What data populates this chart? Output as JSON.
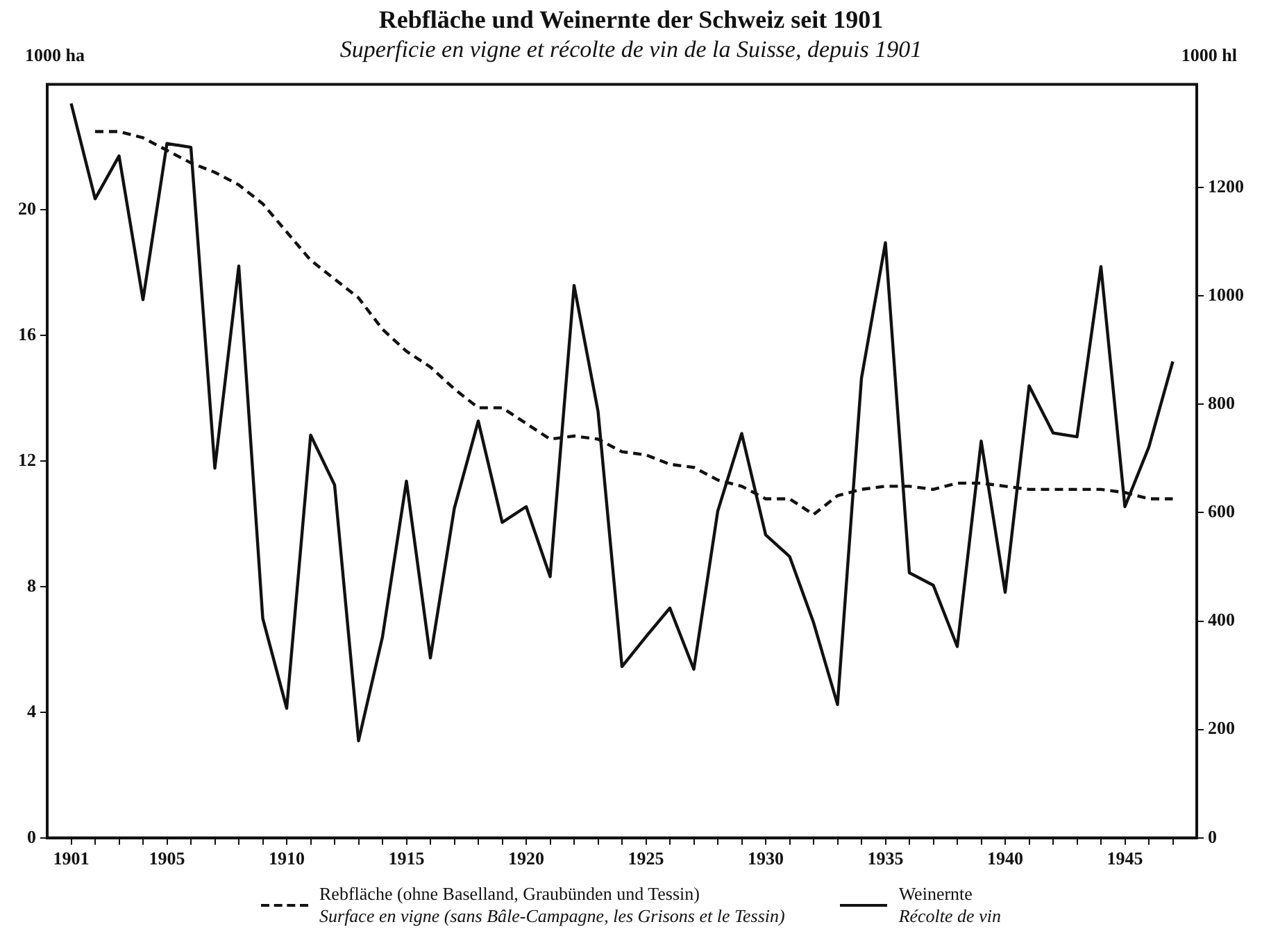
{
  "chart_data": {
    "type": "line",
    "title": "Rebfläche und Weinernte der Schweiz seit 1901",
    "subtitle": "Superficie en vigne et récolte de vin de la Suisse, depuis 1901",
    "ylabel": "1000 ha",
    "y2label": "1000 hl",
    "x": [
      1901,
      1902,
      1903,
      1904,
      1905,
      1906,
      1907,
      1908,
      1909,
      1910,
      1911,
      1912,
      1913,
      1914,
      1915,
      1916,
      1917,
      1918,
      1919,
      1920,
      1921,
      1922,
      1923,
      1924,
      1925,
      1926,
      1927,
      1928,
      1929,
      1930,
      1931,
      1932,
      1933,
      1934,
      1935,
      1936,
      1937,
      1938,
      1939,
      1940,
      1941,
      1942,
      1943,
      1944,
      1945,
      1946,
      1947
    ],
    "series": [
      {
        "name": "Rebfläche (ohne Baselland, Graubünden und Tessin)\nSurface en vigne (sans Bâle-Campagne, les Grisons et le Tessin)",
        "color": "#111111",
        "line_style": "dashed",
        "values": [
          null,
          22.5,
          22.5,
          22.3,
          21.9,
          21.5,
          21.2,
          20.8,
          20.2,
          19.3,
          18.4,
          17.8,
          17.2,
          16.2,
          15.5,
          15.0,
          14.3,
          13.7,
          13.7,
          13.2,
          12.7,
          12.8,
          12.7,
          12.3,
          12.2,
          11.9,
          11.8,
          11.4,
          11.2,
          10.8,
          10.8,
          10.3,
          10.9,
          11.1,
          11.2,
          11.2,
          11.1,
          11.3,
          11.3,
          11.2,
          11.1,
          11.1,
          11.1,
          11.1,
          11.0,
          10.8,
          10.8
        ]
      },
      {
        "name": "Weinernte\nRécolte de vin",
        "color": "#111111",
        "line_style": "solid",
        "axis": "y2",
        "values": [
          1355,
          1179,
          1258,
          993,
          1281,
          1274,
          682,
          1055,
          405,
          239,
          743,
          651,
          179,
          371,
          658,
          332,
          608,
          769,
          582,
          611,
          482,
          1019,
          787,
          316,
          371,
          424,
          311,
          603,
          746,
          559,
          519,
          397,
          246,
          848,
          1098,
          489,
          466,
          353,
          732,
          453,
          834,
          747,
          740,
          1054,
          611,
          721,
          879
        ]
      }
    ],
    "xlim": [
      1900,
      1948
    ],
    "xticks": [
      1901,
      {
        "value": 1902,
        "label": null
      },
      {
        "value": 1903,
        "label": null
      },
      {
        "value": 1904,
        "label": null
      },
      1905,
      {
        "value": 1906,
        "label": null
      },
      {
        "value": 1907,
        "label": null
      },
      {
        "value": 1908,
        "label": null
      },
      {
        "value": 1909,
        "label": null
      },
      1910,
      {
        "value": 1911,
        "label": null
      },
      {
        "value": 1912,
        "label": null
      },
      {
        "value": 1913,
        "label": null
      },
      {
        "value": 1914,
        "label": null
      },
      1915,
      {
        "value": 1916,
        "label": null
      },
      {
        "value": 1917,
        "label": null
      },
      {
        "value": 1918,
        "label": null
      },
      {
        "value": 1919,
        "label": null
      },
      1920,
      {
        "value": 1921,
        "label": null
      },
      {
        "value": 1922,
        "label": null
      },
      {
        "value": 1923,
        "label": null
      },
      {
        "value": 1924,
        "label": null
      },
      1925,
      {
        "value": 1926,
        "label": null
      },
      {
        "value": 1927,
        "label": null
      },
      {
        "value": 1928,
        "label": null
      },
      {
        "value": 1929,
        "label": null
      },
      1930,
      {
        "value": 1931,
        "label": null
      },
      {
        "value": 1932,
        "label": null
      },
      {
        "value": 1933,
        "label": null
      },
      {
        "value": 1934,
        "label": null
      },
      1935,
      {
        "value": 1936,
        "label": null
      },
      {
        "value": 1937,
        "label": null
      },
      {
        "value": 1938,
        "label": null
      },
      {
        "value": 1939,
        "label": null
      },
      1940,
      {
        "value": 1941,
        "label": null
      },
      {
        "value": 1942,
        "label": null
      },
      {
        "value": 1943,
        "label": null
      },
      {
        "value": 1944,
        "label": null
      },
      1945,
      {
        "value": 1946,
        "label": null
      },
      {
        "value": 1947,
        "label": null
      }
    ],
    "ylim": [
      0,
      24
    ],
    "yticks": [
      0,
      4,
      8,
      12,
      16,
      20
    ],
    "y2lim": [
      0,
      1390
    ],
    "y2ticks": [
      0,
      200,
      400,
      600,
      800,
      1000,
      1200
    ],
    "grid": false,
    "legend": "bottom",
    "marker": "none"
  }
}
